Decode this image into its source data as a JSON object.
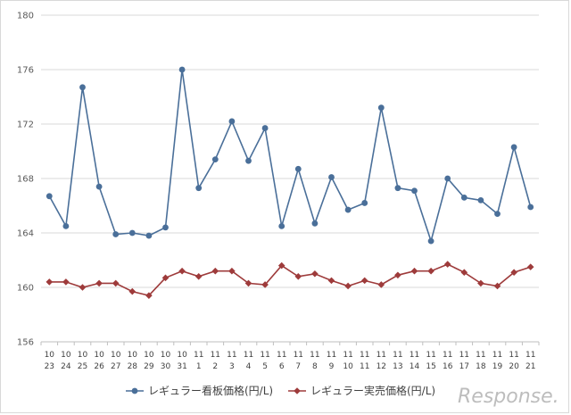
{
  "chart_data": {
    "type": "line",
    "title": "",
    "xlabel": "",
    "ylabel": "",
    "ylim": [
      156,
      180
    ],
    "yticks": [
      156,
      160,
      164,
      168,
      172,
      176,
      180
    ],
    "grid": "horizontal",
    "legend_position": "bottom",
    "categories": [
      [
        "10",
        "23"
      ],
      [
        "10",
        "24"
      ],
      [
        "10",
        "25"
      ],
      [
        "10",
        "26"
      ],
      [
        "10",
        "27"
      ],
      [
        "10",
        "28"
      ],
      [
        "10",
        "29"
      ],
      [
        "10",
        "30"
      ],
      [
        "10",
        "31"
      ],
      [
        "11",
        "1"
      ],
      [
        "11",
        "2"
      ],
      [
        "11",
        "3"
      ],
      [
        "11",
        "4"
      ],
      [
        "11",
        "5"
      ],
      [
        "11",
        "6"
      ],
      [
        "11",
        "7"
      ],
      [
        "11",
        "8"
      ],
      [
        "11",
        "9"
      ],
      [
        "11",
        "10"
      ],
      [
        "11",
        "11"
      ],
      [
        "11",
        "12"
      ],
      [
        "11",
        "13"
      ],
      [
        "11",
        "14"
      ],
      [
        "11",
        "15"
      ],
      [
        "11",
        "16"
      ],
      [
        "11",
        "17"
      ],
      [
        "11",
        "18"
      ],
      [
        "11",
        "19"
      ],
      [
        "11",
        "20"
      ],
      [
        "11",
        "21"
      ]
    ],
    "series": [
      {
        "name": "レギュラー看板価格(円/L)",
        "color": "#4a6f99",
        "marker": "circle",
        "values": [
          166.7,
          164.5,
          174.7,
          167.4,
          163.9,
          164.0,
          163.8,
          164.4,
          176.0,
          167.3,
          169.4,
          172.2,
          169.3,
          171.7,
          164.5,
          168.7,
          164.7,
          168.1,
          165.7,
          166.2,
          173.2,
          167.3,
          167.1,
          163.4,
          168.0,
          166.6,
          166.4,
          165.4,
          170.3,
          165.9
        ]
      },
      {
        "name": "レギュラー実売価格(円/L)",
        "color": "#9e3b3b",
        "marker": "diamond",
        "values": [
          160.4,
          160.4,
          160.0,
          160.3,
          160.3,
          159.7,
          159.4,
          160.7,
          161.2,
          160.8,
          161.2,
          161.2,
          160.3,
          160.2,
          161.6,
          160.8,
          161.0,
          160.5,
          160.1,
          160.5,
          160.2,
          160.9,
          161.2,
          161.2,
          161.7,
          161.1,
          160.3,
          160.1,
          161.1,
          161.5
        ]
      }
    ]
  },
  "watermark": "Response."
}
